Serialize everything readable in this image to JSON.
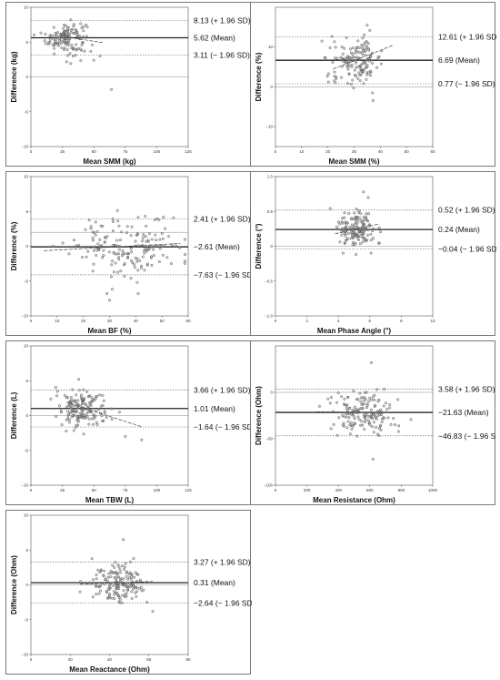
{
  "chart_data": [
    {
      "type": "scatter",
      "xlabel": "Mean SMM (kg)",
      "ylabel": "Difference (kg)",
      "xlim": [
        0,
        125
      ],
      "ylim": [
        -10,
        10
      ],
      "xticks": [
        "0",
        "25",
        "50",
        "75",
        "100",
        "125"
      ],
      "yticks": [
        "−10",
        "−5",
        "0",
        "5",
        "10"
      ],
      "mean": 5.62,
      "upper": 8.13,
      "lower": 3.11,
      "mean_label": "5.62 (Mean)",
      "upper_label": "8.13 (+ 1.96 SD)",
      "lower_label": "3.11 (− 1.96 SD)",
      "cloud": {
        "cx": 28,
        "cy": 5.6,
        "sx": 8,
        "sy": 1.2,
        "n": 140
      },
      "outliers": [
        [
          64,
          -1.8
        ],
        [
          50,
          2.4
        ],
        [
          55,
          3.0
        ]
      ],
      "trend": [
        [
          15,
          6.1
        ],
        [
          58,
          4.9
        ]
      ]
    },
    {
      "type": "scatter",
      "xlabel": "Mean SMM (%)",
      "ylabel": "Difference (%)",
      "xlim": [
        0,
        60
      ],
      "ylim": [
        -15,
        20
      ],
      "xticks": [
        "0",
        "10",
        "20",
        "30",
        "40",
        "50",
        "60"
      ],
      "yticks": [
        "−10",
        "0",
        "10"
      ],
      "mean": 6.69,
      "upper": 12.61,
      "lower": 0.77,
      "mean_label": "6.69 (Mean)",
      "upper_label": "12.61 (+ 1.96 SD)",
      "lower_label": "0.77 (− 1.96 SD)",
      "cloud": {
        "cx": 31,
        "cy": 6.5,
        "sx": 5,
        "sy": 2.8,
        "n": 150
      },
      "outliers": [
        [
          37,
          -1.5
        ],
        [
          35,
          15.5
        ],
        [
          36,
          14.2
        ]
      ],
      "trend": [
        [
          22,
          4.5
        ],
        [
          45,
          10.5
        ]
      ]
    },
    {
      "type": "scatter",
      "xlabel": "Mean BF (%)",
      "ylabel": "Difference (%)",
      "xlim": [
        0,
        60
      ],
      "ylim": [
        -15,
        10
      ],
      "xticks": [
        "0",
        "10",
        "20",
        "30",
        "40",
        "50",
        "60"
      ],
      "yticks": [
        "−10",
        "−5",
        "0",
        "5",
        "10"
      ],
      "mean": -2.61,
      "upper": 2.41,
      "lower": -7.63,
      "mean_label": "−2.61 (Mean)",
      "upper_label": "2.41 (+ 1.96 SD)",
      "lower_label": "−7.63 (− 1.96 SD)",
      "cloud": {
        "cx": 38,
        "cy": -2.6,
        "sx": 11,
        "sy": 2.6,
        "n": 170
      },
      "outliers": [
        [
          30,
          -12.2
        ],
        [
          29,
          -11
        ],
        [
          31,
          -10.2
        ],
        [
          33,
          3.9
        ]
      ],
      "trend": [
        [
          5,
          -3.3
        ],
        [
          57,
          -2.0
        ]
      ]
    },
    {
      "type": "scatter",
      "xlabel": "Mean Phase Angle (°)",
      "ylabel": "Difference (°)",
      "xlim": [
        0,
        10
      ],
      "ylim": [
        -1,
        1
      ],
      "xticks": [
        "0",
        "2",
        "4",
        "6",
        "8",
        "10"
      ],
      "yticks": [
        "−1.0",
        "−0.5",
        "0",
        "0.5",
        "1.0"
      ],
      "mean": 0.24,
      "upper": 0.52,
      "lower": -0.04,
      "mean_label": "0.24 (Mean)",
      "upper_label": "0.52 (+ 1.96 SD)",
      "lower_label": "−0.04 (− 1.96 SD)",
      "cloud": {
        "cx": 5.2,
        "cy": 0.24,
        "sx": 0.6,
        "sy": 0.14,
        "n": 150
      },
      "outliers": [
        [
          5.6,
          0.78
        ],
        [
          5.9,
          0.7
        ],
        [
          4.3,
          -0.1
        ]
      ],
      "trend": [
        [
          3.8,
          0.18
        ],
        [
          6.6,
          0.32
        ]
      ]
    },
    {
      "type": "scatter",
      "xlabel": "Mean TBW (L)",
      "ylabel": "Difference (L)",
      "xlim": [
        0,
        125
      ],
      "ylim": [
        -10,
        10
      ],
      "xticks": [
        "0",
        "25",
        "50",
        "75",
        "100",
        "125"
      ],
      "yticks": [
        "−10",
        "−5",
        "0",
        "5",
        "10"
      ],
      "mean": 1.01,
      "upper": 3.66,
      "lower": -1.64,
      "mean_label": "1.01 (Mean)",
      "upper_label": "3.66 (+ 1.96 SD)",
      "lower_label": "−1.64 (− 1.96 SD)",
      "cloud": {
        "cx": 40,
        "cy": 1.0,
        "sx": 9,
        "sy": 1.3,
        "n": 160
      },
      "outliers": [
        [
          38,
          5.2
        ],
        [
          75,
          -3.0
        ],
        [
          88,
          -3.5
        ]
      ],
      "trend": [
        [
          28,
          1.9
        ],
        [
          88,
          -1.6
        ]
      ]
    },
    {
      "type": "scatter",
      "xlabel": "Mean Resistance (Ohm)",
      "ylabel": "Difference (Ohm)",
      "xlim": [
        0,
        1000
      ],
      "ylim": [
        -100,
        50
      ],
      "xticks": [
        "0",
        "200",
        "400",
        "600",
        "800",
        "1000"
      ],
      "yticks": [
        "−100",
        "−50",
        "0"
      ],
      "mean": -21.63,
      "upper": 3.58,
      "lower": -46.83,
      "mean_label": "−21.63 (Mean)",
      "upper_label": "3.58 (+ 1.96 SD)",
      "lower_label": "−46.83 (− 1.96 SD)",
      "cloud": {
        "cx": 560,
        "cy": -22,
        "sx": 95,
        "sy": 13,
        "n": 160
      },
      "outliers": [
        [
          610,
          32
        ],
        [
          620,
          -72
        ],
        [
          280,
          -15
        ]
      ],
      "trend": [
        [
          260,
          -21
        ],
        [
          820,
          -22
        ]
      ]
    },
    {
      "type": "scatter",
      "xlabel": "Mean Reactance (Ohm)",
      "ylabel": "Difference (Ohm)",
      "xlim": [
        0,
        80
      ],
      "ylim": [
        -10,
        10
      ],
      "xticks": [
        "0",
        "20",
        "40",
        "60",
        "80"
      ],
      "yticks": [
        "−10",
        "−5",
        "0",
        "5",
        "10"
      ],
      "mean": 0.31,
      "upper": 3.27,
      "lower": -2.64,
      "mean_label": "0.31 (Mean)",
      "upper_label": "3.27 (+ 1.96 SD)",
      "lower_label": "−2.64 (− 1.96 SD)",
      "cloud": {
        "cx": 45,
        "cy": 0.3,
        "sx": 7,
        "sy": 1.5,
        "n": 160
      },
      "outliers": [
        [
          47,
          6.5
        ],
        [
          62,
          -3.8
        ],
        [
          25,
          -1.0
        ]
      ],
      "trend": [
        [
          25,
          0.1
        ],
        [
          62,
          0.5
        ]
      ]
    }
  ]
}
